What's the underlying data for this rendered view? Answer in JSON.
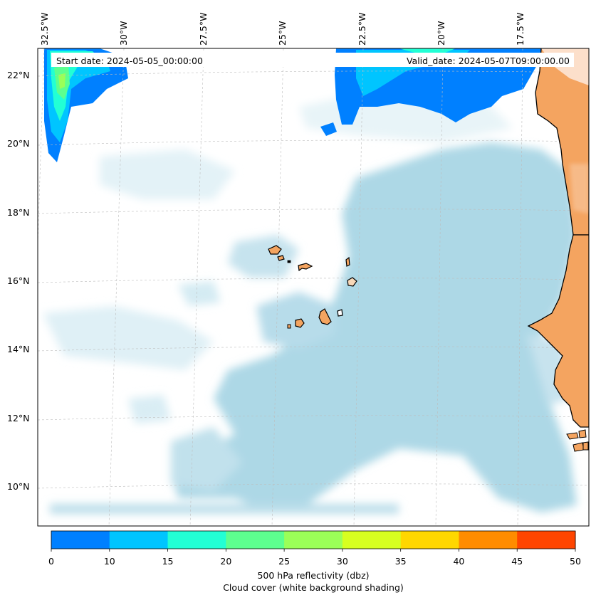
{
  "map": {
    "start_date": "Start date: 2024-05-05_00:00:00",
    "valid_date": "Valid_date: 2024-05-07T09:00:00.00",
    "lat_labels": [
      "22°N",
      "20°N",
      "18°N",
      "16°N",
      "14°N",
      "12°N",
      "10°N"
    ],
    "lon_labels": [
      "32.5°W",
      "30°W",
      "27.5°W",
      "25°W",
      "22.5°W",
      "20°W",
      "17.5°W"
    ],
    "land_color": "#f4a460",
    "cloud_color": "#add8e6",
    "coastline_color": "#000000"
  },
  "colorbar": {
    "ticks": [
      "0",
      "10",
      "15",
      "20",
      "25",
      "30",
      "35",
      "40",
      "45",
      "50"
    ],
    "colors": [
      "#0080ff",
      "#00c5ff",
      "#22ffd5",
      "#5dff8f",
      "#9bff58",
      "#d7ff20",
      "#ffd700",
      "#ff8c00",
      "#ff4500"
    ],
    "label": "500 hPa reflectivity (dbz)",
    "sublabel": "Cloud cover (white background shading)"
  }
}
